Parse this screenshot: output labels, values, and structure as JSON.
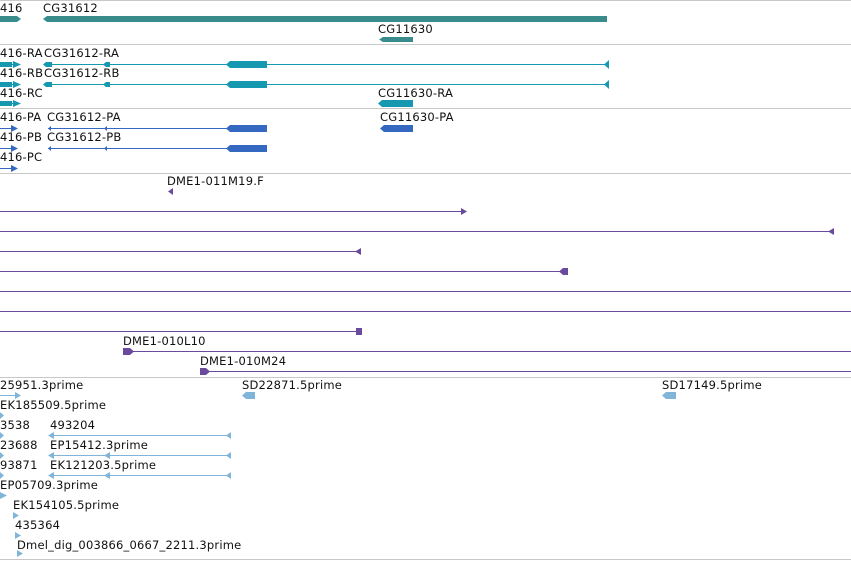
{
  "colors": {
    "gene": "#3a8c8c",
    "transcript_ra": "#1598b0",
    "transcript_pa": "#3568c0",
    "clone": "#6a4a9c",
    "est": "#80b4d8",
    "separator": "#c8c8c8"
  },
  "tracks": {
    "genes": {
      "labels": [
        "416",
        "CG31612",
        "CG11630"
      ]
    },
    "transcripts": {
      "labels": [
        "416-RA",
        "CG31612-RA",
        "416-RB",
        "CG31612-RB",
        "416-RC",
        "CG11630-RA"
      ]
    },
    "proteins": {
      "labels": [
        "416-PA",
        "CG31612-PA",
        "CG11630-PA",
        "416-PB",
        "CG31612-PB",
        "416-PC"
      ]
    },
    "clones": {
      "labels": [
        "DME1-011M19.F",
        "DME1-010L10",
        "DME1-010M24"
      ]
    },
    "ests": {
      "labels": [
        "25951.3prime",
        "SD22871.5prime",
        "SD17149.5prime",
        "EK185509.5prime",
        "3538",
        "493204",
        "23688",
        "EP15412.3prime",
        "93871",
        "EK121203.5prime",
        "EP05709.3prime",
        "EK154105.5prime",
        "435364",
        "Dmel_dig_003866_0667_2211.3prime"
      ]
    }
  }
}
